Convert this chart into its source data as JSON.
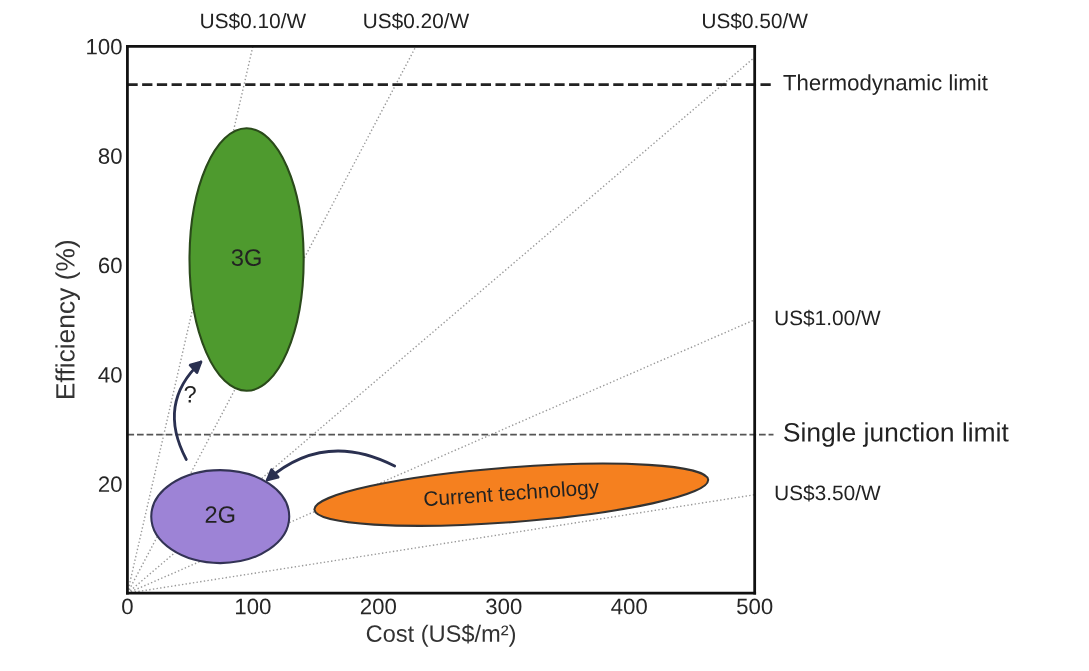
{
  "chart_data": {
    "type": "line",
    "xlabel": "Cost (US$/m²)",
    "ylabel": "Efficiency (%)",
    "xlim": [
      0,
      500
    ],
    "ylim": [
      0,
      100
    ],
    "xticks": [
      0,
      100,
      200,
      300,
      400,
      500
    ],
    "yticks": [
      20,
      40,
      60,
      80,
      100
    ],
    "grid": false,
    "line_style": "dotted",
    "marker": "none",
    "series": [
      {
        "name": "US$0.10/W",
        "color": "#999999",
        "x": [
          0,
          100
        ],
        "values": [
          0,
          100
        ]
      },
      {
        "name": "US$0.20/W",
        "color": "#999999",
        "x": [
          0,
          230
        ],
        "values": [
          0,
          100
        ]
      },
      {
        "name": "US$0.50/W",
        "color": "#999999",
        "x": [
          0,
          500
        ],
        "values": [
          0,
          98
        ]
      },
      {
        "name": "US$1.00/W",
        "color": "#999999",
        "x": [
          0,
          500
        ],
        "values": [
          0,
          50
        ]
      },
      {
        "name": "US$3.50/W",
        "color": "#999999",
        "x": [
          0,
          500
        ],
        "values": [
          0,
          18
        ]
      }
    ],
    "ref_lines": [
      {
        "axis": "y",
        "value": 93,
        "label": "Thermodynamic limit",
        "color": "#222222",
        "line_style": "dashed"
      },
      {
        "axis": "y",
        "value": 29,
        "label": "Single junction limit",
        "color": "#555555",
        "line_style": "dashed"
      }
    ],
    "annotations": [
      "3G",
      "2G",
      "Current technology",
      "?"
    ]
  }
}
